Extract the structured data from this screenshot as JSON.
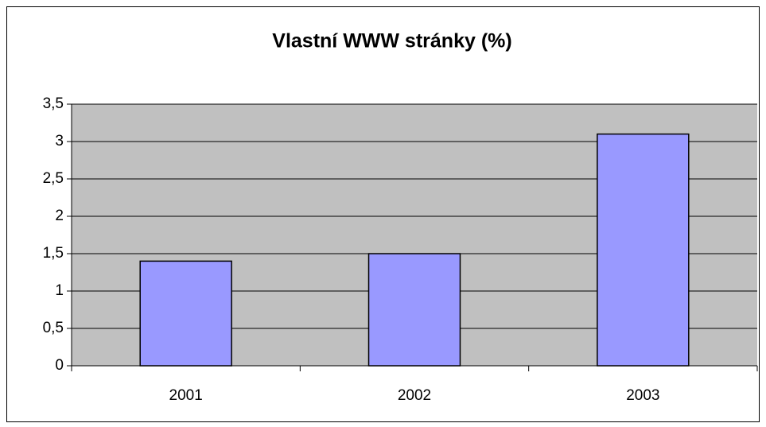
{
  "chart_data": {
    "type": "bar",
    "title": "Vlastní WWW stránky (%)",
    "categories": [
      "2001",
      "2002",
      "2003"
    ],
    "values": [
      1.4,
      1.5,
      3.1
    ],
    "color": "#9999ff",
    "ylim": [
      0,
      3.5
    ],
    "yticks": [
      0,
      {
        "value": 0.5,
        "label": "0,5"
      },
      1,
      {
        "value": 1.5,
        "label": "1,5"
      },
      2,
      {
        "value": 2.5,
        "label": "2,5"
      },
      3,
      {
        "value": 3.5,
        "label": "3,5"
      }
    ],
    "grid": true,
    "plot_background": "#c0c0c0"
  }
}
